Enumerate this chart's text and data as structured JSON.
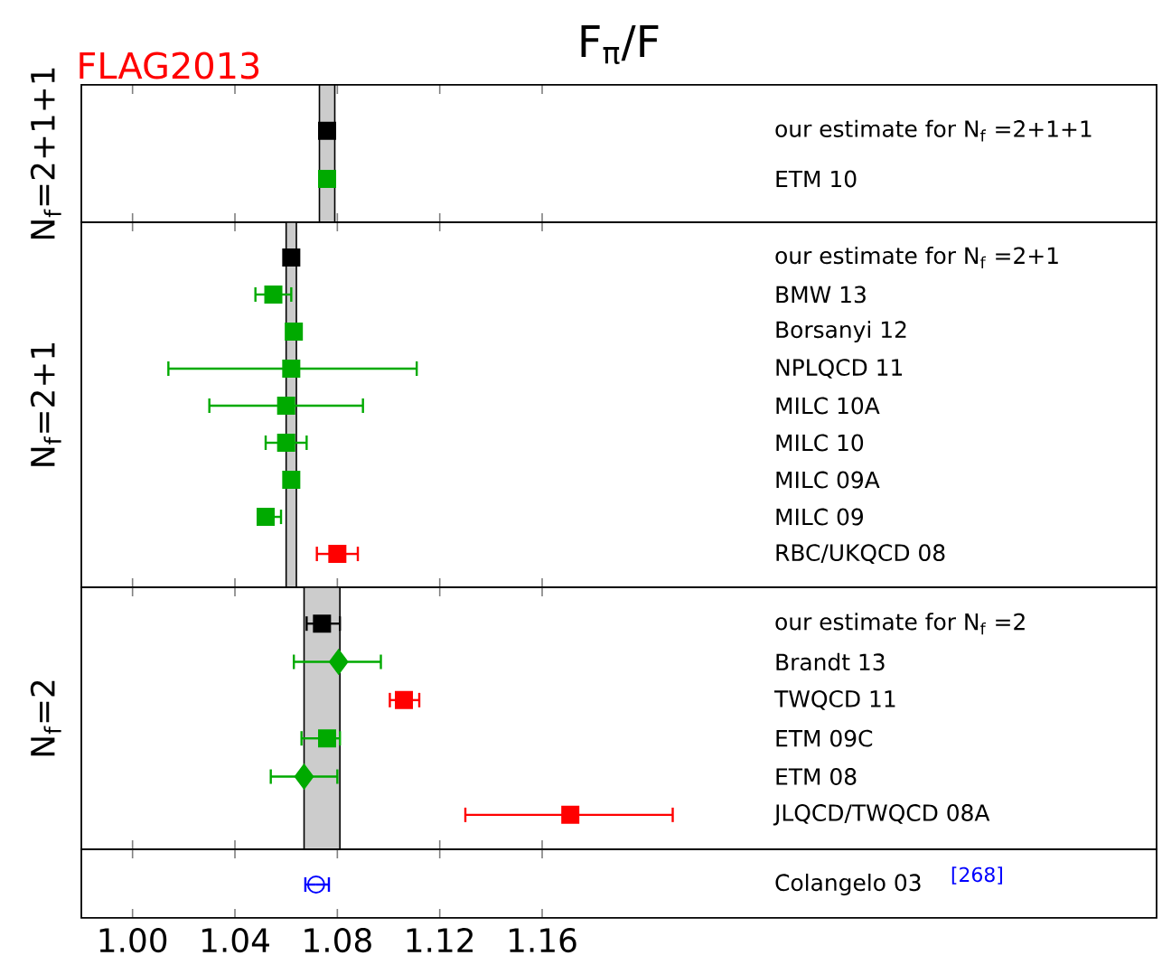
{
  "chart_data": [
    {
      "type": "scatter",
      "orientation": "horizontal",
      "title": "F$_{π}$/F",
      "ylabel": "N$_{f}$=2+1+1",
      "annotations": [
        "FLAG2013"
      ],
      "categories": [
        "our estimate for N$_{f}$ =2+1+1",
        "ETM 10"
      ],
      "xlim": [
        0.98,
        1.4
      ],
      "xticks": [
        1.0,
        1.04,
        1.08,
        1.12,
        1.16
      ],
      "tick_labels": "y",
      "bands": [
        {
          "axis": "x",
          "from": 1.073,
          "to": 1.079,
          "color": "#cccccc"
        }
      ],
      "series": [
        {
          "color": "#000000",
          "marker": "square",
          "values": [
            1.076,
            null
          ]
        },
        {
          "color": "#00aa00",
          "marker": "square",
          "values": [
            null,
            1.076
          ]
        }
      ]
    },
    {
      "type": "scatter",
      "orientation": "horizontal",
      "ylabel": "N$_{f}$=2+1",
      "categories": [
        "our estimate for N$_{f}$ =2+1",
        "BMW 13",
        "Borsanyi 12",
        "NPLQCD 11",
        "MILC 10A",
        "MILC 10",
        "MILC 09A",
        "MILC 09",
        "RBC/UKQCD 08"
      ],
      "xlim": [
        0.98,
        1.4
      ],
      "xticks": [
        1.0,
        1.04,
        1.08,
        1.12,
        1.16
      ],
      "tick_labels": "y",
      "bands": [
        {
          "axis": "x",
          "from": 1.06,
          "to": 1.064,
          "color": "#cccccc"
        }
      ],
      "series": [
        {
          "color": "#000000",
          "marker": "square",
          "values": [
            1.062,
            null,
            null,
            null,
            null,
            null,
            null,
            null,
            null
          ]
        },
        {
          "color": "#00aa00",
          "marker": "square",
          "values": [
            null,
            1.055,
            1.063,
            1.062,
            1.06,
            1.06,
            1.062,
            1.052,
            null
          ],
          "errors": [
            null,
            [
              1.048,
              1.062
            ],
            null,
            [
              1.014,
              1.111
            ],
            [
              1.03,
              1.09
            ],
            [
              1.052,
              1.068
            ],
            null,
            [
              1.049,
              1.058
            ],
            null
          ]
        },
        {
          "color": "#ff0000",
          "marker": "square",
          "values": [
            null,
            null,
            null,
            null,
            null,
            null,
            null,
            null,
            1.08
          ],
          "errors": [
            null,
            null,
            null,
            null,
            null,
            null,
            null,
            null,
            [
              1.072,
              1.088
            ]
          ]
        }
      ]
    },
    {
      "type": "scatter",
      "orientation": "horizontal",
      "ylabel": "N$_{f}$=2",
      "categories": [
        "our estimate for N$_{f}$ =2",
        "Brandt 13",
        "TWQCD 11",
        "ETM 09C",
        "ETM 08",
        "JLQCD/TWQCD 08A"
      ],
      "xlim": [
        0.98,
        1.4
      ],
      "xticks": [
        1.0,
        1.04,
        1.08,
        1.12,
        1.16
      ],
      "tick_labels": "y",
      "bands": [
        {
          "axis": "x",
          "from": 1.067,
          "to": 1.081,
          "color": "#cccccc"
        }
      ],
      "series": [
        {
          "color": "#000000",
          "marker": "square",
          "values": [
            1.074,
            null,
            null,
            null,
            null,
            null
          ],
          "errors": [
            [
              1.068,
              1.081
            ],
            null,
            null,
            null,
            null,
            null
          ]
        },
        {
          "color": "#00aa00",
          "marker": "diamond",
          "values": [
            null,
            1.0805,
            null,
            null,
            1.067,
            null
          ],
          "errors": [
            null,
            [
              1.063,
              1.097
            ],
            null,
            null,
            [
              1.054,
              1.08
            ],
            null
          ]
        },
        {
          "color": "#00aa00",
          "marker": "square",
          "values": [
            null,
            null,
            null,
            1.076,
            null,
            null
          ],
          "errors": [
            null,
            null,
            null,
            [
              1.066,
              1.081
            ],
            null,
            null
          ]
        },
        {
          "color": "#ff0000",
          "marker": "square",
          "values": [
            null,
            null,
            1.106,
            null,
            null,
            1.171
          ],
          "errors": [
            null,
            null,
            [
              1.1005,
              1.112
            ],
            null,
            null,
            [
              1.13,
              1.211
            ]
          ]
        }
      ]
    },
    {
      "type": "scatter",
      "orientation": "horizontal",
      "annotations": [
        "[268]"
      ],
      "categories": [
        "Colangelo 03"
      ],
      "xlim": [
        0.98,
        1.4
      ],
      "xticks": [
        {
          "value": 1.0,
          "label": "1.00"
        },
        1.04,
        1.08,
        1.12,
        1.16
      ],
      "series": [
        {
          "color": "#0000ff",
          "marker": "circle",
          "values": [
            1.0717
          ],
          "errors": [
            [
              1.0675,
              1.0767
            ]
          ]
        }
      ]
    }
  ]
}
